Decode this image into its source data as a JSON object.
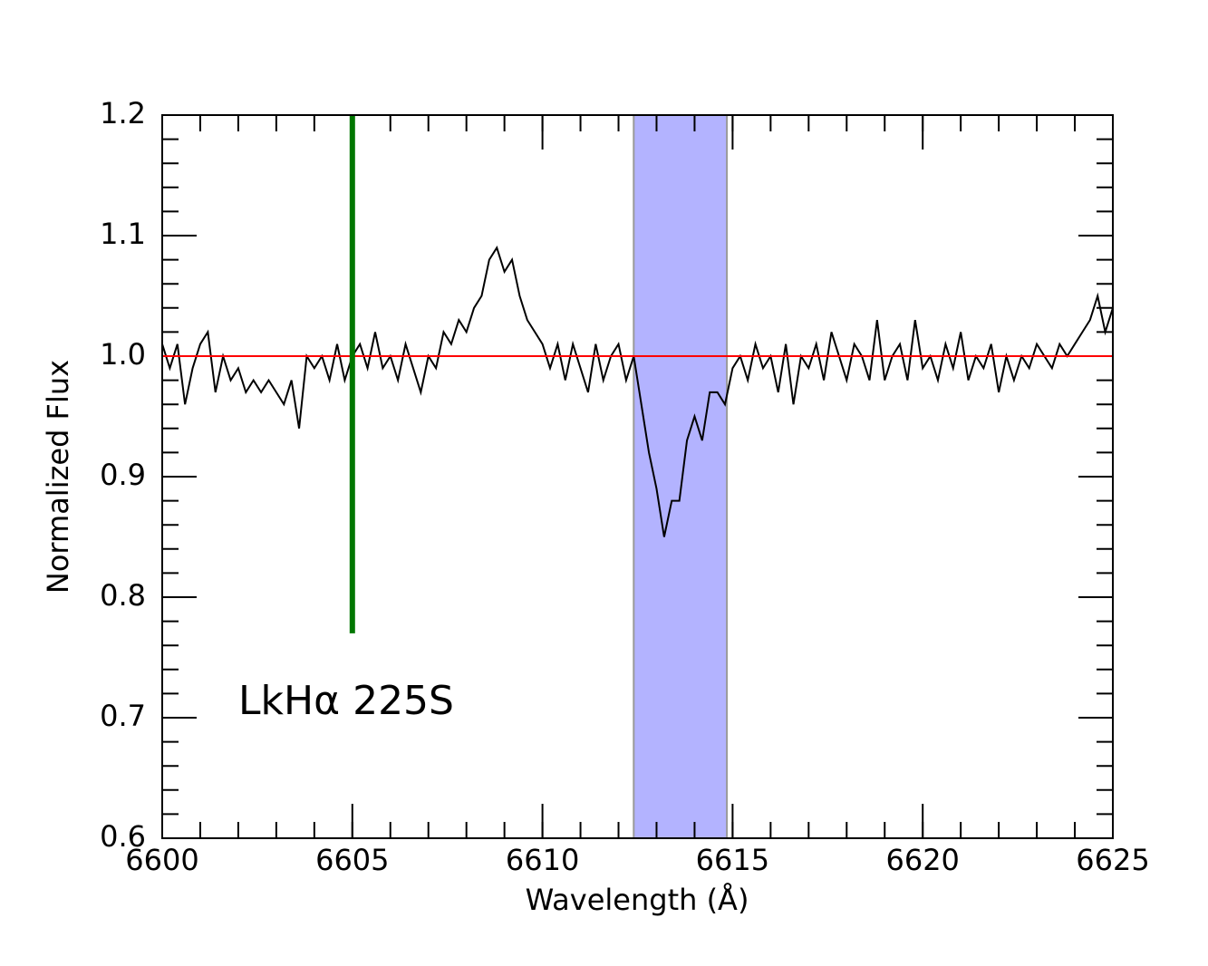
{
  "chart_data": {
    "type": "line",
    "xlabel": "Wavelength (Å)",
    "ylabel": "Normalized Flux",
    "annotation": "LkHα 225S",
    "xlim": [
      6600,
      6625
    ],
    "ylim": [
      0.6,
      1.2
    ],
    "xticks": [
      6600,
      6605,
      6610,
      6615,
      6620,
      6625
    ],
    "yticks": [
      0.6,
      0.7,
      0.8,
      0.9,
      {
        "value": 1,
        "label": "1.0"
      },
      1.1,
      1.2
    ],
    "xminor": 1,
    "yminor": 0.02,
    "hline": {
      "y": 1,
      "color": "#ff0000"
    },
    "vline": {
      "x": 6605,
      "ymin": 0.77,
      "ymax": 1.2,
      "color": "#007700"
    },
    "span": {
      "xmin": 6612.4,
      "xmax": 6614.85,
      "color": "#b3b3ff"
    },
    "series": [
      {
        "color": "#000000",
        "x": [
          6600.0,
          6600.2,
          6600.4,
          6600.6,
          6600.8,
          6601.0,
          6601.2,
          6601.4,
          6601.6,
          6601.8,
          6602.0,
          6602.2,
          6602.4,
          6602.6,
          6602.8,
          6603.0,
          6603.2,
          6603.4,
          6603.6,
          6603.8,
          6604.0,
          6604.2,
          6604.4,
          6604.6,
          6604.8,
          6605.0,
          6605.2,
          6605.4,
          6605.6,
          6605.8,
          6606.0,
          6606.2,
          6606.4,
          6606.6,
          6606.8,
          6607.0,
          6607.2,
          6607.4,
          6607.6,
          6607.8,
          6608.0,
          6608.2,
          6608.4,
          6608.6,
          6608.8,
          6609.0,
          6609.2,
          6609.4,
          6609.6,
          6609.8,
          6610.0,
          6610.2,
          6610.4,
          6610.6,
          6610.8,
          6611.0,
          6611.2,
          6611.4,
          6611.6,
          6611.8,
          6612.0,
          6612.2,
          6612.4,
          6612.6,
          6612.8,
          6613.0,
          6613.2,
          6613.4,
          6613.6,
          6613.8,
          6614.0,
          6614.2,
          6614.4,
          6614.6,
          6614.8,
          6615.0,
          6615.2,
          6615.4,
          6615.6,
          6615.8,
          6616.0,
          6616.2,
          6616.4,
          6616.6,
          6616.8,
          6617.0,
          6617.2,
          6617.4,
          6617.6,
          6617.8,
          6618.0,
          6618.2,
          6618.4,
          6618.6,
          6618.8,
          6619.0,
          6619.2,
          6619.4,
          6619.6,
          6619.8,
          6620.0,
          6620.2,
          6620.4,
          6620.6,
          6620.8,
          6621.0,
          6621.2,
          6621.4,
          6621.6,
          6621.8,
          6622.0,
          6622.2,
          6622.4,
          6622.6,
          6622.8,
          6623.0,
          6623.2,
          6623.4,
          6623.6,
          6623.8,
          6624.0,
          6624.2,
          6624.4,
          6624.6,
          6624.8,
          6625.0
        ],
        "values": [
          1.01,
          0.99,
          1.01,
          0.96,
          0.99,
          1.01,
          1.02,
          0.97,
          1.0,
          0.98,
          0.99,
          0.97,
          0.98,
          0.97,
          0.98,
          0.97,
          0.96,
          0.98,
          0.94,
          1.0,
          0.99,
          1.0,
          0.98,
          1.01,
          0.98,
          1.0,
          1.01,
          0.99,
          1.02,
          0.99,
          1.0,
          0.98,
          1.01,
          0.99,
          0.97,
          1.0,
          0.99,
          1.02,
          1.01,
          1.03,
          1.02,
          1.04,
          1.05,
          1.08,
          1.09,
          1.07,
          1.08,
          1.05,
          1.03,
          1.02,
          1.01,
          0.99,
          1.01,
          0.98,
          1.01,
          0.99,
          0.97,
          1.01,
          0.98,
          1.0,
          1.01,
          0.98,
          1.0,
          0.96,
          0.92,
          0.89,
          0.85,
          0.88,
          0.88,
          0.93,
          0.95,
          0.93,
          0.97,
          0.97,
          0.96,
          0.99,
          1.0,
          0.98,
          1.01,
          0.99,
          1.0,
          0.97,
          1.01,
          0.96,
          1.0,
          0.99,
          1.01,
          0.98,
          1.02,
          1.0,
          0.98,
          1.01,
          1.0,
          0.98,
          1.03,
          0.98,
          1.0,
          1.01,
          0.98,
          1.03,
          0.99,
          1.0,
          0.98,
          1.01,
          0.99,
          1.02,
          0.98,
          1.0,
          0.99,
          1.01,
          0.97,
          1.0,
          0.98,
          1.0,
          0.99,
          1.01,
          1.0,
          0.99,
          1.01,
          1.0,
          1.01,
          1.02,
          1.03,
          1.05,
          1.02,
          1.04
        ]
      }
    ]
  }
}
